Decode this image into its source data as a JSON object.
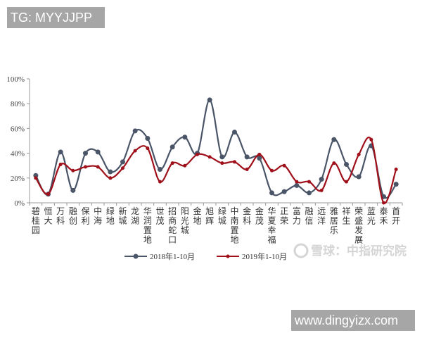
{
  "header": {
    "tag_label": "TG: MYYJJPP"
  },
  "footer": {
    "site_label": "www.dingyizx.com"
  },
  "watermark": {
    "text": "雪球：中指研究院"
  },
  "colors": {
    "series_2018": "#4a5568",
    "series_2019": "#a0101a",
    "axis": "#999999"
  },
  "chart_data": {
    "type": "line",
    "title": "",
    "xlabel": "",
    "ylabel": "",
    "ylim": [
      0,
      100
    ],
    "yticks": [
      "0%",
      "20%",
      "40%",
      "60%",
      "80%",
      "100%"
    ],
    "grid": false,
    "legend_position": "bottom",
    "categories": [
      "碧桂园",
      "恒大",
      "万科",
      "融创",
      "保利",
      "中海",
      "绿地",
      "新城",
      "龙湖",
      "华润置地",
      "世茂",
      "招商蛇口",
      "阳光城",
      "金地",
      "旭辉",
      "绿城",
      "中南置地",
      "金科",
      "金茂",
      "华夏幸福",
      "正荣",
      "富力",
      "融信",
      "远洋",
      "雅居乐",
      "祥生",
      "荣盛发展",
      "蓝光",
      "泰禾",
      "首开"
    ],
    "series": [
      {
        "name": "2018年1-10月",
        "values": [
          22,
          7,
          41,
          10,
          40,
          41,
          25,
          33,
          58,
          52,
          27,
          45,
          53,
          40,
          83,
          37,
          57,
          37,
          36,
          8,
          9,
          14,
          8,
          19,
          51,
          31,
          21,
          46,
          5,
          15
        ]
      },
      {
        "name": "2019年1-10月",
        "values": [
          20,
          7,
          31,
          26,
          29,
          29,
          20,
          28,
          42,
          44,
          17,
          32,
          30,
          39,
          37,
          32,
          33,
          27,
          39,
          26,
          30,
          17,
          17,
          10,
          32,
          17,
          39,
          51,
          0,
          27
        ]
      }
    ]
  }
}
